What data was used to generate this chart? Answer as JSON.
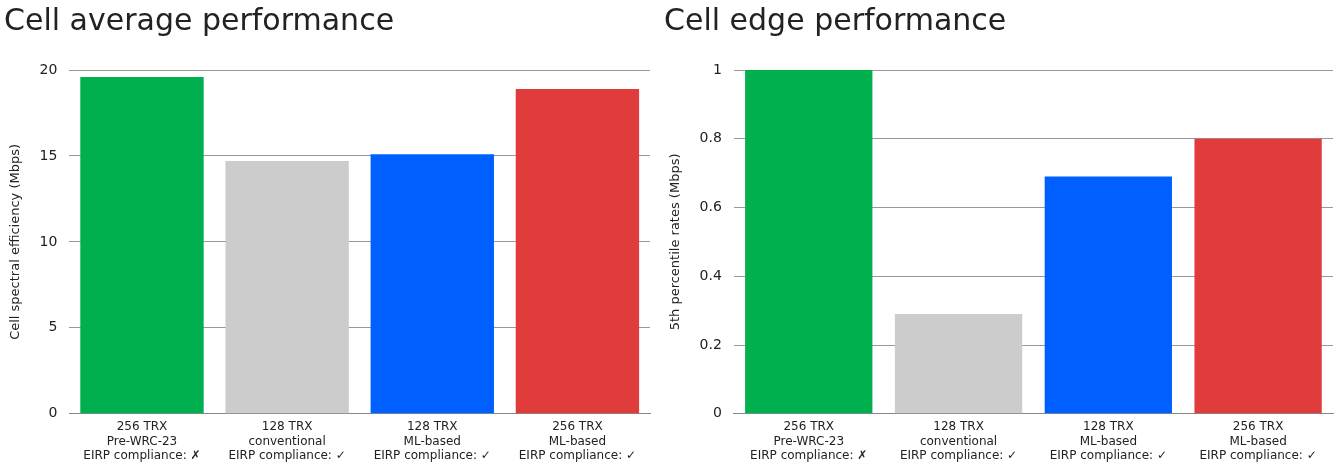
{
  "chart_data": [
    {
      "type": "bar",
      "title": "Cell average performance",
      "ylabel": "Cell spectral efficiency (Mbps)",
      "categories": [
        "256 TRX\nPre-WRC-23\nEIRP compliance: ✗",
        "128 TRX\nconventional\nEIRP compliance: ✓",
        "128 TRX\nML-based\nEIRP compliance: ✓",
        "256 TRX\nML-based\nEIRP compliance: ✓"
      ],
      "values": [
        19.6,
        14.7,
        15.1,
        18.9
      ],
      "colors": [
        "#00b04f",
        "#cccccc",
        "#0060ff",
        "#e03c3c"
      ],
      "ylim": [
        0,
        20
      ],
      "yticks": [
        0,
        5,
        10,
        15,
        20
      ],
      "grid": "y"
    },
    {
      "type": "bar",
      "title": "Cell edge performance",
      "ylabel": "5th percentile rates (Mbps)",
      "categories": [
        "256 TRX\nPre-WRC-23\nEIRP compliance: ✗",
        "128 TRX\nconventional\nEIRP compliance: ✓",
        "128 TRX\nML-based\nEIRP compliance: ✓",
        "256 TRX\nML-based\nEIRP compliance: ✓"
      ],
      "values": [
        1.0,
        0.29,
        0.69,
        0.8
      ],
      "colors": [
        "#00b04f",
        "#cccccc",
        "#0060ff",
        "#e03c3c"
      ],
      "ylim": [
        0,
        1
      ],
      "yticks": [
        0,
        0.2,
        0.4,
        0.6,
        0.8,
        1
      ],
      "grid": "y"
    }
  ]
}
